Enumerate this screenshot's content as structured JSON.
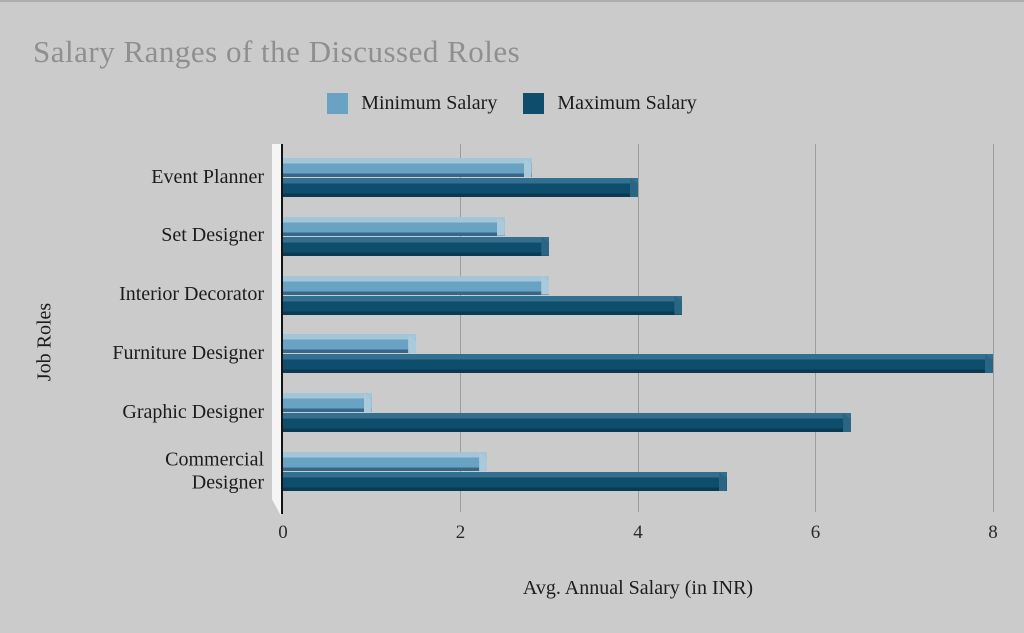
{
  "page": {
    "title": "Salary Ranges of the Discussed Roles"
  },
  "chart_data": {
    "type": "bar",
    "orientation": "horizontal",
    "title": "Salary Ranges of the Discussed Roles",
    "categories": [
      "Event Planner",
      "Set Designer",
      "Interior Decorator",
      "Furniture Designer",
      "Graphic Designer",
      "Commercial\nDesigner"
    ],
    "series": [
      {
        "name": "Minimum Salary",
        "color": "#6aa2c3",
        "values": [
          2.8,
          2.5,
          3.0,
          1.5,
          1.0,
          2.3
        ]
      },
      {
        "name": "Maximum Salary",
        "color": "#0e4d6b",
        "values": [
          4.0,
          3.0,
          4.5,
          8.0,
          6.4,
          5.0
        ]
      }
    ],
    "xlabel": "Avg. Annual Salary (in INR)",
    "ylabel": "Job Roles",
    "xlim": [
      0,
      8
    ],
    "xticks": [
      0,
      2,
      4,
      6,
      8
    ],
    "grid": true,
    "legend_position": "top"
  },
  "colors": {
    "background": "#cbcbcb",
    "title_text": "#8f8f8f",
    "body_text": "#1c1c1c",
    "gridline": "#9c9c9c",
    "axis_line": "#151515",
    "wall": "#f5f5f5",
    "bar_styles": {
      "min": {
        "top": "#a3c5d8",
        "mid": "#6aa2c3",
        "bottom": "#35688b",
        "cap": "#aac9da"
      },
      "max": {
        "top": "#336f8e",
        "mid": "#0e4d6b",
        "bottom": "#093a52",
        "cap": "#2a6583"
      }
    }
  }
}
